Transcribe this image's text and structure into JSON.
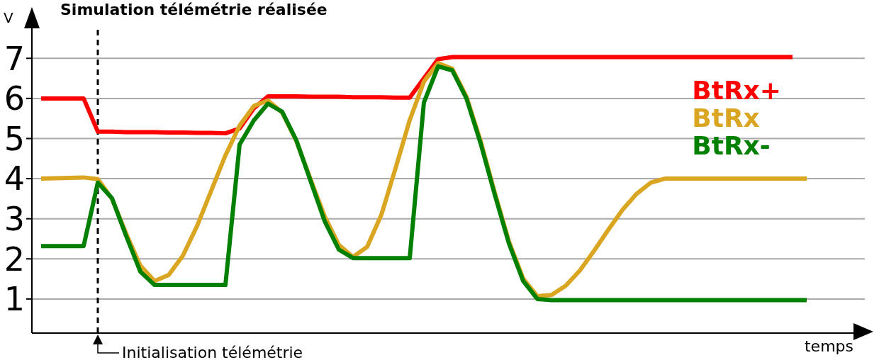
{
  "chart_data": {
    "type": "line",
    "title": "Simulation télémétrie réalisée",
    "xlabel": "temps",
    "ylabel": "V",
    "categories": [
      null,
      null,
      null,
      null,
      null,
      null,
      null,
      null,
      null,
      null,
      null,
      null,
      null,
      null,
      null,
      null,
      null,
      null,
      null,
      null,
      null,
      null,
      null,
      null,
      null,
      null,
      null,
      null,
      null,
      null,
      null,
      null,
      null,
      null,
      null,
      null,
      null,
      null,
      null,
      null,
      null,
      null,
      null,
      null,
      null,
      null,
      null,
      null,
      null,
      null,
      null,
      null,
      null,
      null,
      null
    ],
    "series": [
      {
        "name": "BtRx+",
        "color": "#ff0000",
        "values": [
          6.0,
          6.0,
          6.0,
          6.0,
          5.17,
          5.17,
          5.16,
          5.16,
          5.16,
          5.15,
          5.15,
          5.14,
          5.14,
          5.13,
          5.25,
          5.75,
          6.05,
          6.05,
          6.05,
          6.04,
          6.04,
          6.04,
          6.03,
          6.03,
          6.03,
          6.02,
          6.02,
          6.5,
          6.98,
          7.03,
          7.03,
          7.03,
          7.03,
          7.03,
          7.03,
          7.03,
          7.03,
          7.03,
          7.03,
          7.03,
          7.03,
          7.03,
          7.03,
          7.03,
          7.03,
          7.03,
          7.03,
          7.03,
          7.03,
          7.03,
          7.03,
          7.03,
          7.03,
          7.03,
          null
        ]
      },
      {
        "name": "BtRx",
        "color": "#daa520",
        "values": [
          4.0,
          4.01,
          4.02,
          4.03,
          3.99,
          3.5,
          2.63,
          1.83,
          1.45,
          1.6,
          2.08,
          2.82,
          3.7,
          4.58,
          5.32,
          5.81,
          5.95,
          5.65,
          4.94,
          3.99,
          3.06,
          2.35,
          2.05,
          2.3,
          3.1,
          4.26,
          5.46,
          6.42,
          6.88,
          6.74,
          6.05,
          4.94,
          3.65,
          2.43,
          1.51,
          1.07,
          1.1,
          1.33,
          1.71,
          2.2,
          2.72,
          3.22,
          3.62,
          3.9,
          4.0,
          4.0,
          4.0,
          4.0,
          4.0,
          4.0,
          4.0,
          4.0,
          4.0,
          4.0,
          4.0
        ]
      },
      {
        "name": "BtRx-",
        "color": "#008000",
        "values": [
          2.32,
          2.32,
          2.32,
          2.32,
          3.9,
          3.51,
          2.57,
          1.68,
          1.35,
          1.35,
          1.35,
          1.35,
          1.35,
          1.35,
          4.85,
          5.45,
          5.87,
          5.67,
          4.96,
          3.95,
          2.94,
          2.23,
          2.02,
          2.02,
          2.02,
          2.02,
          2.02,
          5.9,
          6.8,
          6.7,
          6.0,
          4.88,
          3.6,
          2.38,
          1.45,
          1.0,
          0.97,
          0.97,
          0.97,
          0.97,
          0.97,
          0.97,
          0.97,
          0.97,
          0.97,
          0.97,
          0.97,
          0.97,
          0.97,
          0.97,
          0.97,
          0.97,
          0.97,
          0.97,
          0.97
        ]
      }
    ],
    "ylim": [
      0.15,
      7.8
    ],
    "yticks": [
      1,
      2,
      3,
      4,
      5,
      6,
      7
    ],
    "grid": "y",
    "legend": "top right",
    "marker": "none",
    "line_style": "solid",
    "annotations": [
      "Initialisation télémétrie"
    ]
  }
}
